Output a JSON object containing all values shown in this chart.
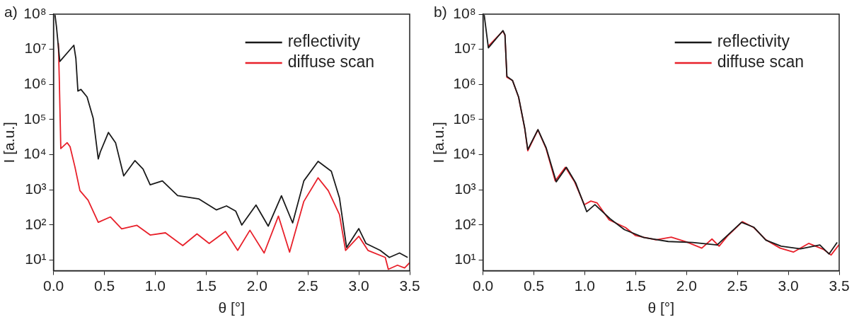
{
  "chart_data": [
    {
      "type": "line",
      "title": "a)",
      "xlabel": "θ [°]",
      "ylabel": "I [a.u.]",
      "log": "y",
      "grid": false,
      "legend": "top right",
      "marker": "none",
      "line_style": "solid",
      "xlim": [
        0,
        3.5
      ],
      "xticks": [
        {
          "value": 0,
          "label": "0.0"
        },
        0.5,
        {
          "value": 1,
          "label": "1.0"
        },
        1.5,
        {
          "value": 2,
          "label": "2.0"
        },
        2.5,
        {
          "value": 3,
          "label": "3.0"
        },
        3.5
      ],
      "ylim": [
        5,
        100000000
      ],
      "yticks": [
        {
          "value": 10,
          "label": "10¹"
        },
        {
          "value": 100,
          "label": "10²"
        },
        {
          "value": 1000,
          "label": "10³"
        },
        {
          "value": 10000,
          "label": "10⁴"
        },
        {
          "value": 100000,
          "label": "10⁵"
        },
        {
          "value": 1000000,
          "label": "10⁶"
        },
        {
          "value": 10000000,
          "label": "10⁷"
        },
        {
          "value": 100000000,
          "label": "10⁸"
        }
      ],
      "series": [
        {
          "name": "reflectivity",
          "color": "#1a1a1a",
          "x": [
            0.015,
            0.03,
            0.062,
            0.2,
            0.22,
            0.24,
            0.27,
            0.33,
            0.39,
            0.44,
            0.46,
            0.54,
            0.61,
            0.69,
            0.8,
            0.88,
            0.95,
            1.07,
            1.22,
            1.43,
            1.6,
            1.7,
            1.79,
            1.85,
            1.99,
            2.11,
            2.24,
            2.35,
            2.46,
            2.6,
            2.73,
            2.81,
            2.88,
            3.0,
            3.07,
            3.21,
            3.3,
            3.4,
            3.48
          ],
          "values": [
            95000000,
            42000000,
            4500000,
            13000000,
            5500000,
            650000,
            720000,
            440000,
            110000,
            7600,
            12000,
            43000,
            22000,
            2500,
            6800,
            3900,
            1400,
            1800,
            690,
            550,
            270,
            350,
            250,
            100,
            370,
            93,
            680,
            115,
            1800,
            6500,
            3400,
            590,
            23,
            79,
            30,
            19,
            12,
            16,
            12
          ]
        },
        {
          "name": "diffuse scan",
          "color": "#e8202a",
          "x": [
            0.048,
            0.058,
            0.072,
            0.134,
            0.163,
            0.21,
            0.26,
            0.34,
            0.44,
            0.56,
            0.67,
            0.82,
            0.95,
            1.1,
            1.27,
            1.41,
            1.53,
            1.69,
            1.81,
            1.93,
            2.07,
            2.21,
            2.32,
            2.46,
            2.6,
            2.7,
            2.81,
            2.87,
            3.0,
            3.09,
            3.26,
            3.29,
            3.38,
            3.45,
            3.5
          ],
          "values": [
            15000000,
            1100000,
            15000,
            22000,
            17000,
            4600,
            950,
            510,
            120,
            170,
            78,
            98,
            52,
            60,
            26,
            56,
            30,
            66,
            19,
            71,
            16,
            180,
            17,
            470,
            2200,
            950,
            200,
            19,
            48,
            19,
            12,
            5.5,
            7.2,
            6,
            8.5
          ]
        }
      ]
    },
    {
      "type": "line",
      "title": "b)",
      "xlabel": "θ [°]",
      "ylabel": "I [a.u.]",
      "log": "y",
      "grid": false,
      "legend": "top right",
      "marker": "none",
      "line_style": "solid",
      "xlim": [
        0,
        3.5
      ],
      "xticks": [
        {
          "value": 0,
          "label": "0.0"
        },
        0.5,
        {
          "value": 1,
          "label": "1.0"
        },
        1.5,
        {
          "value": 2,
          "label": "2.0"
        },
        2.5,
        {
          "value": 3,
          "label": "3.0"
        },
        3.5
      ],
      "ylim": [
        5,
        100000000
      ],
      "yticks": [
        {
          "value": 10,
          "label": "10¹"
        },
        {
          "value": 100,
          "label": "10²"
        },
        {
          "value": 1000,
          "label": "10³"
        },
        {
          "value": 10000,
          "label": "10⁴"
        },
        {
          "value": 100000,
          "label": "10⁵"
        },
        {
          "value": 1000000,
          "label": "10⁶"
        },
        {
          "value": 10000000,
          "label": "10⁷"
        },
        {
          "value": 100000000,
          "label": "10⁸"
        }
      ],
      "series": [
        {
          "name": "reflectivity",
          "color": "#1a1a1a",
          "x": [
            0.012,
            0.053,
            0.196,
            0.216,
            0.235,
            0.29,
            0.35,
            0.41,
            0.44,
            0.54,
            0.62,
            0.72,
            0.82,
            0.91,
            1.02,
            1.1,
            1.25,
            1.39,
            1.58,
            1.82,
            2.06,
            2.3,
            2.4,
            2.54,
            2.66,
            2.78,
            2.93,
            3.12,
            3.31,
            3.4,
            3.48
          ],
          "values": [
            95000000,
            11000000,
            34000000,
            26000000,
            1700000,
            1300000,
            440000,
            58000,
            14000,
            52000,
            16000,
            1700,
            4400,
            1600,
            240,
            380,
            150,
            74,
            44,
            34,
            32,
            27,
            50,
            120,
            87,
            37,
            25,
            21,
            27,
            15,
            32
          ]
        },
        {
          "name": "diffuse scan",
          "color": "#e8202a",
          "x": [
            0.05,
            0.196,
            0.216,
            0.235,
            0.29,
            0.35,
            0.41,
            0.44,
            0.54,
            0.62,
            0.71,
            0.81,
            0.9,
            0.995,
            1.06,
            1.12,
            1.24,
            1.4,
            1.5,
            1.7,
            1.85,
            2.0,
            2.15,
            2.25,
            2.32,
            2.4,
            2.55,
            2.66,
            2.78,
            2.92,
            3.05,
            3.2,
            3.35,
            3.42,
            3.5
          ],
          "values": [
            12000000,
            33000000,
            25000000,
            1600000,
            1300000,
            430000,
            56000,
            13000,
            51000,
            15000,
            1800,
            4400,
            1700,
            380,
            480,
            430,
            140,
            85,
            50,
            38,
            45,
            33,
            22,
            40,
            25,
            48,
            125,
            85,
            38,
            22,
            17,
            30,
            20,
            14,
            28
          ]
        }
      ]
    }
  ]
}
